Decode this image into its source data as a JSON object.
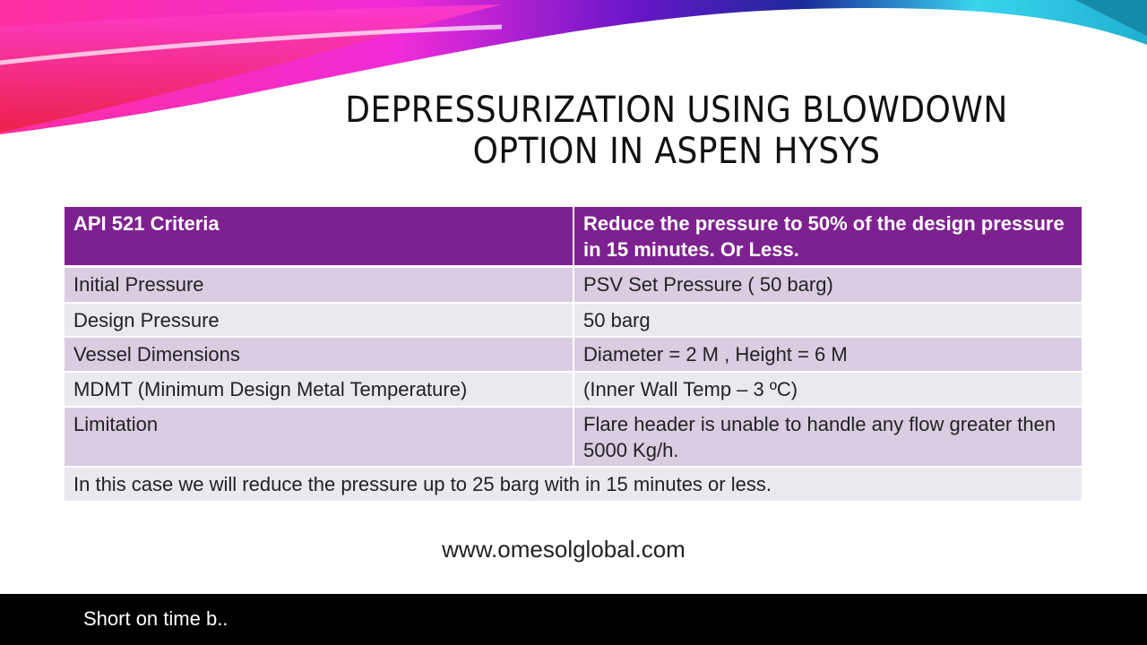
{
  "slide": {
    "title_line1": "DEPRESSURIZATION USING BLOWDOWN",
    "title_line2": "OPTION IN ASPEN HYSYS",
    "table": {
      "header": [
        "API 521 Criteria",
        "Reduce the pressure to 50% of the design pressure in 15 minutes. Or Less."
      ],
      "rows": [
        [
          "Initial Pressure",
          "PSV Set Pressure ( 50 barg)"
        ],
        [
          "Design Pressure",
          "50 barg"
        ],
        [
          "Vessel Dimensions",
          "Diameter = 2 M , Height = 6 M"
        ],
        [
          "MDMT (Minimum Design Metal Temperature)",
          " (Inner Wall Temp – 3 ºC)"
        ],
        [
          "Limitation",
          "Flare header is unable to handle any flow greater then 5000 Kg/h."
        ]
      ],
      "footer_row": "In this case we will reduce the pressure up to 25 barg with in 15 minutes or less."
    },
    "website": "www.omesolglobal.com"
  },
  "subtitle": "Short on time b..",
  "colors": {
    "header": "#7e2190",
    "row_dark": "#dacde2",
    "row_light": "#ece8f0"
  }
}
